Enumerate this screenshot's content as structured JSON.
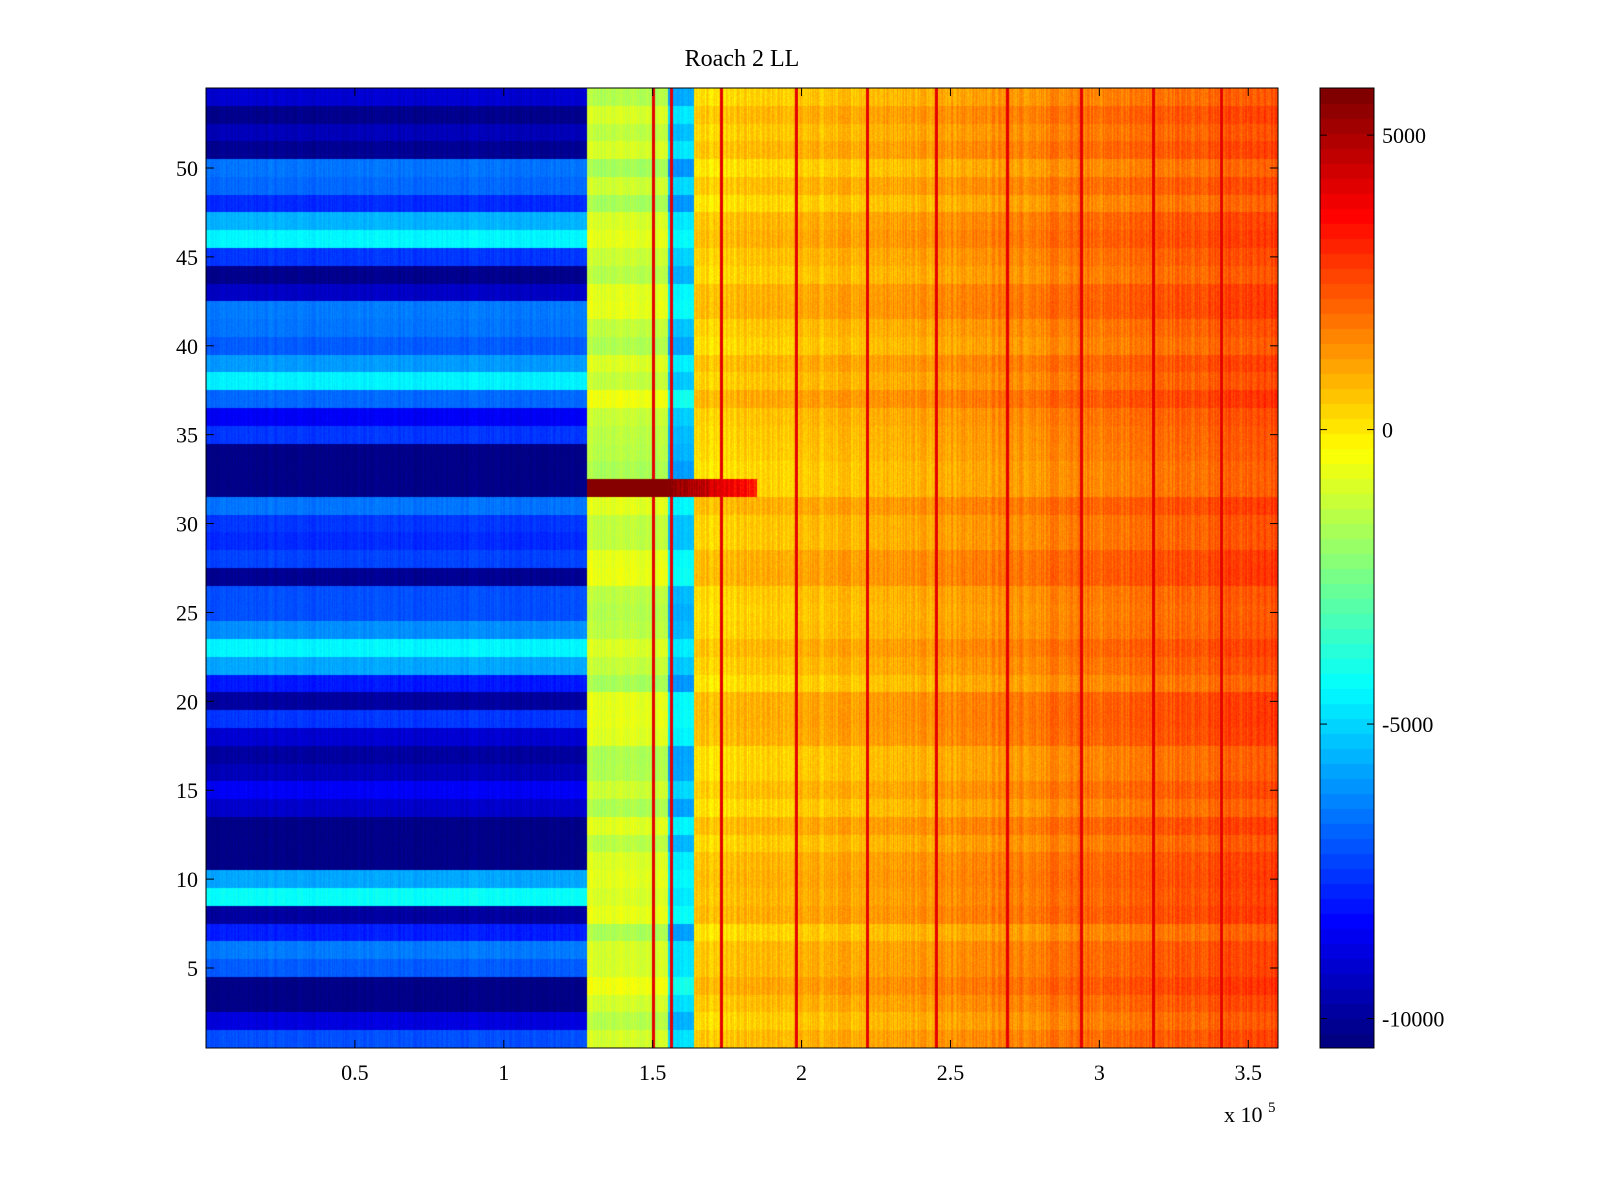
{
  "chart_data": {
    "type": "heatmap",
    "title": "Roach 2 LL",
    "xlabel": "",
    "ylabel": "",
    "x_exponent_label": "x 10",
    "x_exponent_power": "5",
    "xlim": [
      0,
      3.6
    ],
    "ylim": [
      0.5,
      54.5
    ],
    "x_ticks": [
      0.5,
      1,
      1.5,
      2,
      2.5,
      3,
      3.5
    ],
    "x_tick_labels": [
      "0.5",
      "1",
      "1.5",
      "2",
      "2.5",
      "3",
      "3.5"
    ],
    "y_ticks": [
      5,
      10,
      15,
      20,
      25,
      30,
      35,
      40,
      45,
      50
    ],
    "y_tick_labels": [
      "5",
      "10",
      "15",
      "20",
      "25",
      "30",
      "35",
      "40",
      "45",
      "50"
    ],
    "rows": 54,
    "colormap": "jet",
    "clim": [
      -10500,
      5800
    ],
    "colorbar_ticks": [
      5000,
      0,
      -5000,
      -10000
    ],
    "colorbar_tick_labels": [
      "5000",
      "0",
      "-5000",
      "-10000"
    ],
    "grid": false,
    "regions_x": [
      {
        "x_start": 0.0,
        "x_end": 1.28,
        "description": "low band"
      },
      {
        "x_start": 1.28,
        "x_end": 1.55,
        "value": -1200
      },
      {
        "x_start": 1.55,
        "x_end": 1.64,
        "value": -5200
      },
      {
        "x_start": 1.64,
        "x_end": 3.6,
        "value_start": 300,
        "value_end": 2600
      }
    ],
    "row_values_low_band": [
      -7200,
      -9000,
      -10400,
      -10400,
      -7000,
      -6500,
      -8000,
      -10000,
      -4300,
      -5800,
      -10400,
      -10400,
      -10400,
      -9300,
      -8600,
      -9600,
      -10000,
      -9200,
      -7600,
      -10000,
      -8100,
      -5800,
      -4500,
      -6200,
      -7200,
      -7200,
      -10200,
      -7400,
      -7800,
      -7600,
      -6600,
      -10400,
      -10400,
      -10400,
      -7600,
      -8600,
      -6800,
      -4600,
      -6000,
      -7000,
      -6600,
      -6500,
      -9400,
      -10300,
      -7600,
      -4500,
      -5600,
      -7800,
      -6800,
      -6600,
      -10200,
      -9600,
      -10300,
      -9200
    ],
    "highlight_row": {
      "row": 32,
      "x_start": 1.28,
      "x_end": 1.85,
      "value": 5700
    },
    "vertical_lines": [
      1.5,
      1.56,
      1.73,
      1.98,
      2.22,
      2.45,
      2.69,
      2.94,
      3.18,
      3.41
    ]
  }
}
